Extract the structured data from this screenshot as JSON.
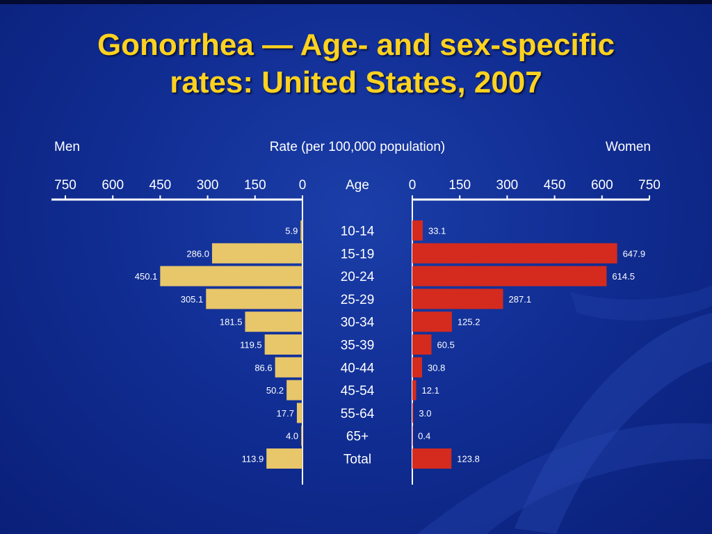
{
  "title_line1": "Gonorrhea — Age- and sex-specific",
  "title_line2": "rates: United States, 2007",
  "chart_data": {
    "type": "bar",
    "title": "Gonorrhea — Age- and sex-specific rates: United States, 2007",
    "xlabel": "Rate (per 100,000 population)",
    "left_label": "Men",
    "right_label": "Women",
    "category_header": "Age",
    "ticks": [
      "0",
      "150",
      "300",
      "450",
      "600",
      "750"
    ],
    "xlim": [
      0,
      750
    ],
    "categories": [
      "10-14",
      "15-19",
      "20-24",
      "25-29",
      "30-34",
      "35-39",
      "40-44",
      "45-54",
      "55-64",
      "65+",
      "Total"
    ],
    "series": [
      {
        "name": "Men",
        "values": [
          5.9,
          286.0,
          450.1,
          305.1,
          181.5,
          119.5,
          86.6,
          50.2,
          17.7,
          4.0,
          113.9
        ],
        "labels": [
          "5.9",
          "286.0",
          "450.1",
          "305.1",
          "181.5",
          "119.5",
          "86.6",
          "50.2",
          "17.7",
          "4.0",
          "113.9"
        ],
        "color": "#e8c66a"
      },
      {
        "name": "Women",
        "values": [
          33.1,
          647.9,
          614.5,
          287.1,
          125.2,
          60.5,
          30.8,
          12.1,
          3.0,
          0.4,
          123.8
        ],
        "labels": [
          "33.1",
          "647.9",
          "614.5",
          "287.1",
          "125.2",
          "60.5",
          "30.8",
          "12.1",
          "3.0",
          "0.4",
          "123.8"
        ],
        "color": "#d42b1e"
      }
    ],
    "grid": false
  }
}
